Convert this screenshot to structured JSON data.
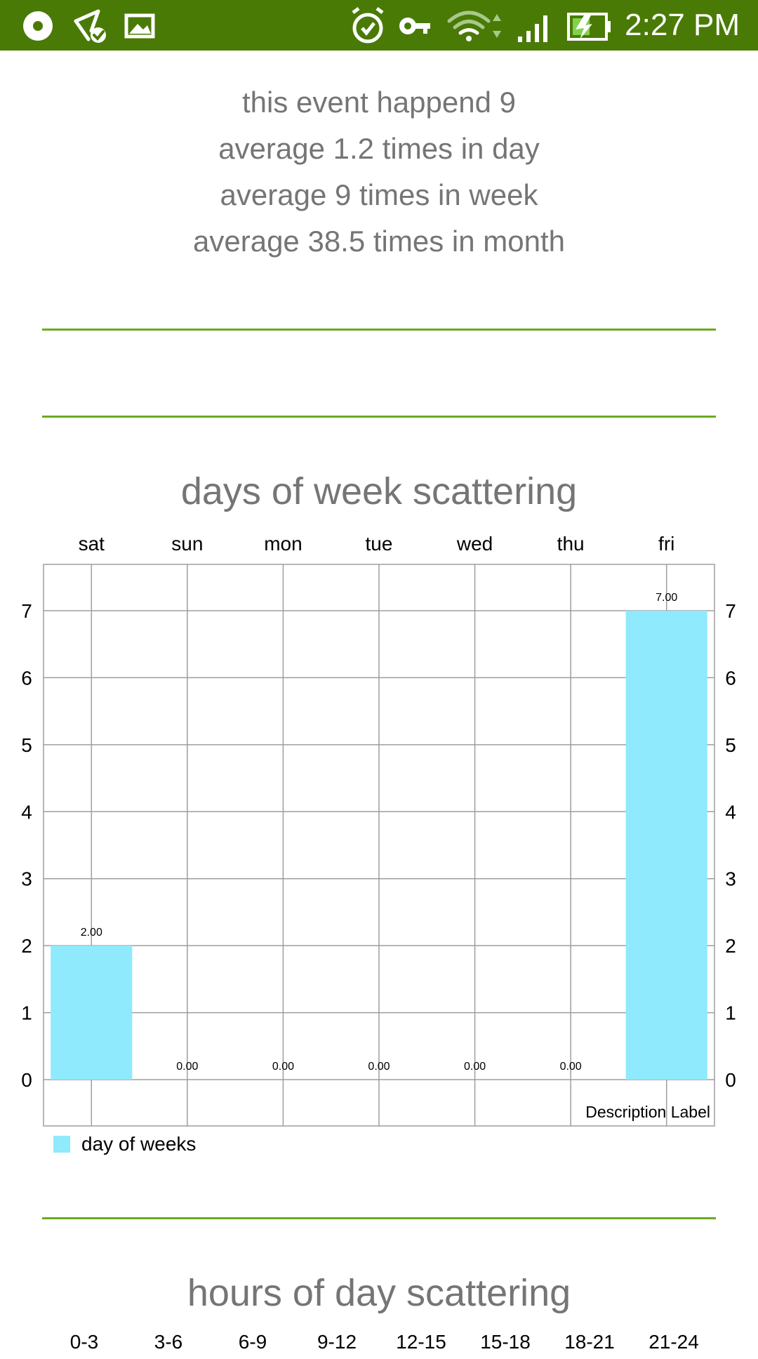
{
  "status_bar": {
    "time": "2:27 PM",
    "background_color": "#4a7a06",
    "icons": [
      "disc-icon",
      "share-check-icon",
      "image-icon",
      "alarm-icon",
      "key-icon",
      "wifi-icon",
      "signal-icon",
      "battery-charging-icon"
    ]
  },
  "stats": {
    "line1": "this event happend 9",
    "line2": "average 1.2 times in day",
    "line3": "average 9 times in week",
    "line4": "average 38.5 times in month"
  },
  "colors": {
    "divider": "#6aab1c",
    "bar": "#8eeafc",
    "grid": "#9e9e9e",
    "text_muted": "#757575"
  },
  "week_chart": {
    "title": "days of week scattering",
    "legend": "day of weeks",
    "description": "Description Label"
  },
  "chart_data": [
    {
      "type": "bar",
      "title": "days of week scattering",
      "categories": [
        "sat",
        "sun",
        "mon",
        "tue",
        "wed",
        "thu",
        "fri"
      ],
      "series": [
        {
          "name": "day of weeks",
          "values": [
            2,
            0,
            0,
            0,
            0,
            0,
            7
          ],
          "value_labels": [
            "2.00",
            "0.00",
            "0.00",
            "0.00",
            "0.00",
            "0.00",
            "7.00"
          ]
        }
      ],
      "ylim": [
        0,
        7
      ],
      "yticks": [
        "0",
        "1",
        "2",
        "3",
        "4",
        "5",
        "6",
        "7"
      ],
      "x_axis_position": "top",
      "y_axis": "both sides",
      "grid": true,
      "legend_position": "bottom-left",
      "description_position": "bottom-right"
    },
    {
      "type": "bar",
      "title": "hours of day scattering",
      "categories": [
        "0-3",
        "3-6",
        "6-9",
        "9-12",
        "12-15",
        "15-18",
        "18-21",
        "21-24"
      ]
    }
  ],
  "hour_chart": {
    "title": "hours of day scattering"
  }
}
